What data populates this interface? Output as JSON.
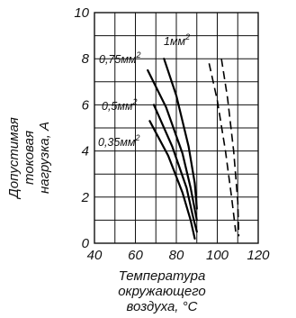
{
  "chart_data": {
    "type": "line",
    "xlabel_lines": [
      "Температура",
      "окружающего",
      "воздуха, °С"
    ],
    "ylabel_lines": [
      "Допустимая",
      "токовая",
      "нагрузка, А"
    ],
    "xlim": [
      40,
      120
    ],
    "ylim": [
      0,
      10
    ],
    "xticks": [
      40,
      60,
      80,
      100,
      120
    ],
    "yticks": [
      0,
      2,
      4,
      6,
      8,
      10
    ],
    "grid": true,
    "series": [
      {
        "name": "0,35мм²",
        "style": "solid",
        "x": [
          67,
          76,
          83,
          87,
          89
        ],
        "y": [
          5.3,
          3.8,
          2.2,
          1.0,
          0.2
        ]
      },
      {
        "name": "0,5мм²",
        "style": "solid",
        "x": [
          69,
          78,
          85,
          88,
          90
        ],
        "y": [
          6.0,
          4.2,
          2.4,
          1.2,
          0.5
        ]
      },
      {
        "name": "0,75мм²",
        "style": "solid",
        "x": [
          66,
          75,
          83,
          87,
          90
        ],
        "y": [
          7.5,
          5.9,
          3.9,
          2.4,
          1.0
        ]
      },
      {
        "name": "1мм²",
        "style": "solid",
        "x": [
          74,
          80,
          86,
          89,
          90
        ],
        "y": [
          8.0,
          6.4,
          4.2,
          2.6,
          1.5
        ]
      },
      {
        "style": "dashed",
        "x": [
          96,
          100,
          104,
          107,
          109
        ],
        "y": [
          7.8,
          6.2,
          4.0,
          2.0,
          0.5
        ]
      },
      {
        "style": "dashed",
        "x": [
          102,
          105,
          108,
          110,
          110.5
        ],
        "y": [
          8.0,
          6.3,
          4.0,
          1.8,
          0.3
        ]
      }
    ],
    "labels": {
      "s1_main": "0,35мм",
      "s1_sup": "2",
      "s2_main": "0,5мм",
      "s2_sup": "2",
      "s3_main": "0,75мм",
      "s3_sup": "2",
      "s4_main": "1мм",
      "s4_sup": "2"
    }
  }
}
